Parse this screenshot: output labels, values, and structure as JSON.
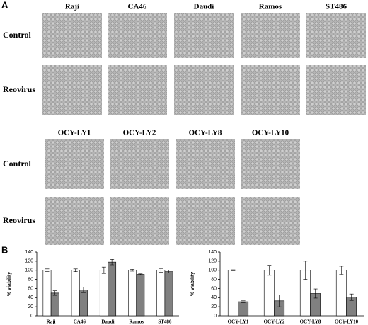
{
  "panel_a": {
    "label": "A",
    "groups": [
      {
        "columns": [
          "Raji",
          "CA46",
          "Daudi",
          "Ramos",
          "ST486"
        ],
        "rows": [
          "Control",
          "Reovirus"
        ]
      },
      {
        "columns": [
          "OCY-LY1",
          "OCY-LY2",
          "OCY-LY8",
          "OCY-LY10"
        ],
        "rows": [
          "Control",
          "Reovirus"
        ]
      }
    ]
  },
  "panel_b": {
    "label": "B"
  },
  "chart_data": [
    {
      "type": "bar",
      "y_label": "% viability",
      "categories": [
        "Raji",
        "CA46",
        "Daudi",
        "Ramos",
        "ST486"
      ],
      "series": [
        {
          "color": "#ffffff",
          "values": [
            100,
            100,
            100,
            100,
            100
          ],
          "errors": [
            3,
            3,
            7,
            2,
            4
          ]
        },
        {
          "color": "#808080",
          "values": [
            50,
            57,
            118,
            91,
            97
          ],
          "errors": [
            5,
            6,
            6,
            1,
            3
          ]
        }
      ],
      "ylim": [
        0,
        140
      ],
      "yticks": [
        0,
        20,
        40,
        60,
        80,
        100,
        120,
        140
      ]
    },
    {
      "type": "bar",
      "y_label": "% viability",
      "categories": [
        "OCY-LY1",
        "OCY-LY2",
        "OCY-LY8",
        "OCY-LY10"
      ],
      "series": [
        {
          "color": "#ffffff",
          "values": [
            100,
            100,
            100,
            100
          ],
          "errors": [
            1,
            11,
            20,
            9
          ]
        },
        {
          "color": "#808080",
          "values": [
            31,
            33,
            49,
            41
          ],
          "errors": [
            2,
            13,
            10,
            7
          ]
        }
      ],
      "ylim": [
        0,
        140
      ],
      "yticks": [
        0,
        20,
        40,
        60,
        80,
        100,
        120,
        140
      ]
    }
  ]
}
